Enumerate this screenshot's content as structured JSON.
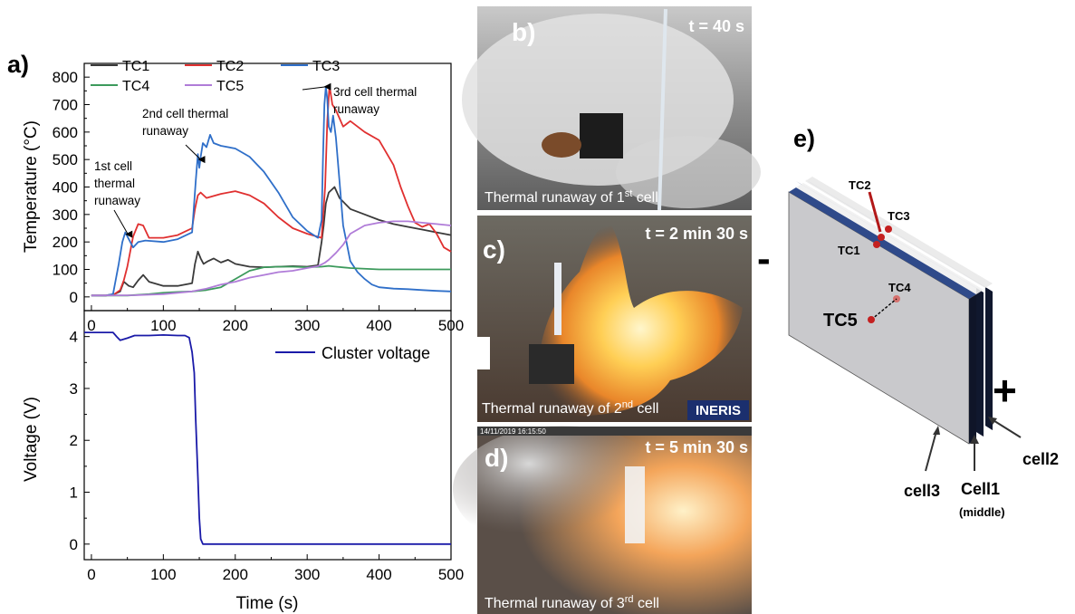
{
  "panel_labels": {
    "a": "a)",
    "b": "b)",
    "c": "c)",
    "d": "d)",
    "e": "e)"
  },
  "chart_data": [
    {
      "type": "line",
      "xlim": [
        -10,
        500
      ],
      "ylim": [
        -50,
        850
      ],
      "xticks": [
        0,
        100,
        200,
        300,
        400,
        500
      ],
      "yticks": [
        0,
        100,
        200,
        300,
        400,
        500,
        600,
        700,
        800
      ],
      "ylabel": "Temperature (°C)",
      "legend_position": "top-left",
      "annotations": [
        {
          "text": [
            "1st cell",
            "thermal",
            "runaway"
          ],
          "x": 47,
          "y": 228
        },
        {
          "text": [
            "2nd cell thermal",
            "runaway"
          ],
          "x": 148,
          "y": 500
        },
        {
          "text": [
            "3rd cell thermal",
            "runaway"
          ],
          "x": 323,
          "y": 765
        }
      ],
      "series": [
        {
          "name": "TC1",
          "color": "#3a3a3a",
          "x": [
            0,
            20,
            32,
            40,
            45,
            52,
            58,
            65,
            72,
            80,
            100,
            120,
            140,
            144,
            148,
            152,
            156,
            162,
            170,
            180,
            190,
            200,
            220,
            240,
            260,
            280,
            300,
            315,
            320,
            323,
            326,
            330,
            338,
            345,
            360,
            380,
            400,
            420,
            440,
            460,
            480,
            500
          ],
          "y": [
            5,
            5,
            10,
            20,
            55,
            40,
            35,
            60,
            80,
            55,
            40,
            40,
            50,
            120,
            165,
            140,
            120,
            130,
            140,
            125,
            135,
            120,
            110,
            108,
            110,
            112,
            110,
            115,
            200,
            260,
            340,
            380,
            400,
            360,
            320,
            300,
            280,
            265,
            255,
            245,
            235,
            225
          ]
        },
        {
          "name": "TC2",
          "color": "#e03030",
          "x": [
            0,
            20,
            32,
            40,
            45,
            50,
            58,
            65,
            72,
            80,
            100,
            120,
            140,
            144,
            148,
            152,
            160,
            180,
            200,
            220,
            240,
            260,
            280,
            300,
            320,
            325,
            328,
            331,
            335,
            340,
            350,
            360,
            380,
            400,
            420,
            430,
            440,
            450,
            460,
            470,
            480,
            490,
            500
          ],
          "y": [
            5,
            5,
            10,
            25,
            60,
            110,
            220,
            265,
            260,
            215,
            215,
            225,
            250,
            320,
            370,
            380,
            360,
            375,
            385,
            370,
            340,
            290,
            250,
            230,
            215,
            400,
            640,
            770,
            700,
            680,
            620,
            640,
            600,
            570,
            480,
            400,
            330,
            270,
            255,
            265,
            230,
            180,
            165
          ]
        },
        {
          "name": "TC3",
          "color": "#2f6fc9",
          "x": [
            0,
            20,
            30,
            38,
            43,
            47,
            52,
            58,
            65,
            75,
            100,
            120,
            140,
            145,
            148,
            150,
            152,
            155,
            160,
            165,
            170,
            180,
            200,
            220,
            240,
            260,
            280,
            300,
            315,
            320,
            322,
            324,
            326,
            328,
            330,
            333,
            336,
            340,
            345,
            350,
            360,
            370,
            380,
            390,
            400,
            420,
            440,
            460,
            480,
            500
          ],
          "y": [
            5,
            5,
            10,
            120,
            200,
            235,
            210,
            180,
            200,
            205,
            200,
            210,
            235,
            420,
            520,
            470,
            510,
            560,
            545,
            590,
            560,
            550,
            540,
            510,
            455,
            380,
            290,
            240,
            215,
            280,
            500,
            700,
            765,
            720,
            620,
            600,
            660,
            580,
            420,
            260,
            130,
            90,
            65,
            45,
            35,
            30,
            28,
            25,
            22,
            20
          ]
        },
        {
          "name": "TC4",
          "color": "#3c9a5c",
          "x": [
            0,
            50,
            80,
            100,
            120,
            140,
            160,
            180,
            200,
            220,
            240,
            260,
            280,
            300,
            320,
            330,
            340,
            360,
            400,
            450,
            500
          ],
          "y": [
            5,
            5,
            10,
            15,
            18,
            20,
            25,
            35,
            65,
            95,
            108,
            110,
            110,
            108,
            110,
            113,
            110,
            105,
            100,
            100,
            100
          ]
        },
        {
          "name": "TC5",
          "color": "#b07cd8",
          "x": [
            0,
            60,
            100,
            140,
            160,
            180,
            200,
            220,
            240,
            260,
            280,
            300,
            315,
            320,
            325,
            330,
            340,
            350,
            360,
            380,
            400,
            420,
            440,
            460,
            480,
            500
          ],
          "y": [
            5,
            6,
            10,
            20,
            30,
            45,
            55,
            70,
            80,
            90,
            95,
            105,
            112,
            118,
            125,
            135,
            160,
            190,
            230,
            260,
            270,
            275,
            275,
            270,
            265,
            260
          ]
        }
      ]
    },
    {
      "type": "line",
      "xlim": [
        -10,
        500
      ],
      "ylim": [
        -0.3,
        4.5
      ],
      "xticks": [
        0,
        100,
        200,
        300,
        400,
        500
      ],
      "yticks": [
        0,
        1,
        2,
        3,
        4
      ],
      "xlabel": "Time (s)",
      "ylabel": "Voltage (V)",
      "legend_position": "top-right",
      "series": [
        {
          "name": "Cluster voltage",
          "color": "#1a1aa8",
          "x": [
            -10,
            0,
            30,
            35,
            40,
            50,
            60,
            80,
            100,
            120,
            130,
            136,
            140,
            143,
            145,
            148,
            150,
            152,
            155,
            160,
            200,
            300,
            400,
            500
          ],
          "y": [
            4.08,
            4.08,
            4.08,
            4.0,
            3.93,
            3.97,
            4.02,
            4.02,
            4.03,
            4.02,
            4.02,
            3.98,
            3.7,
            3.3,
            2.4,
            1.3,
            0.5,
            0.1,
            0.0,
            0.0,
            0.0,
            0.0,
            0.0,
            0.0
          ]
        }
      ]
    }
  ],
  "photos": [
    {
      "time": "t = 40 s",
      "caption": "Thermal runaway of 1st cell",
      "cap_main": "Thermal runaway of 1",
      "cap_sup": "st",
      "cap_end": " cell"
    },
    {
      "time": "t = 2 min 30 s",
      "caption": "Thermal runaway of 2nd cell",
      "cap_main": "Thermal runaway of 2",
      "cap_sup": "nd",
      "cap_end": " cell",
      "logo": "INERIS"
    },
    {
      "time": "t = 5 min 30 s",
      "caption": "Thermal runaway of 3rd cell",
      "cap_main": "Thermal runaway of 3",
      "cap_sup": "rd",
      "cap_end": " cell",
      "stamp": "14/11/2019 16:15:50"
    }
  ],
  "diagram": {
    "tc_labels": {
      "tc1": "TC1",
      "tc2": "TC2",
      "tc3": "TC3",
      "tc4": "TC4",
      "tc5": "TC5"
    },
    "minus": "-",
    "plus": "+",
    "cell_labels": {
      "cell3": "cell3",
      "cell1": "Cell1",
      "cell1_sub": "(middle)",
      "cell2": "cell2"
    }
  }
}
